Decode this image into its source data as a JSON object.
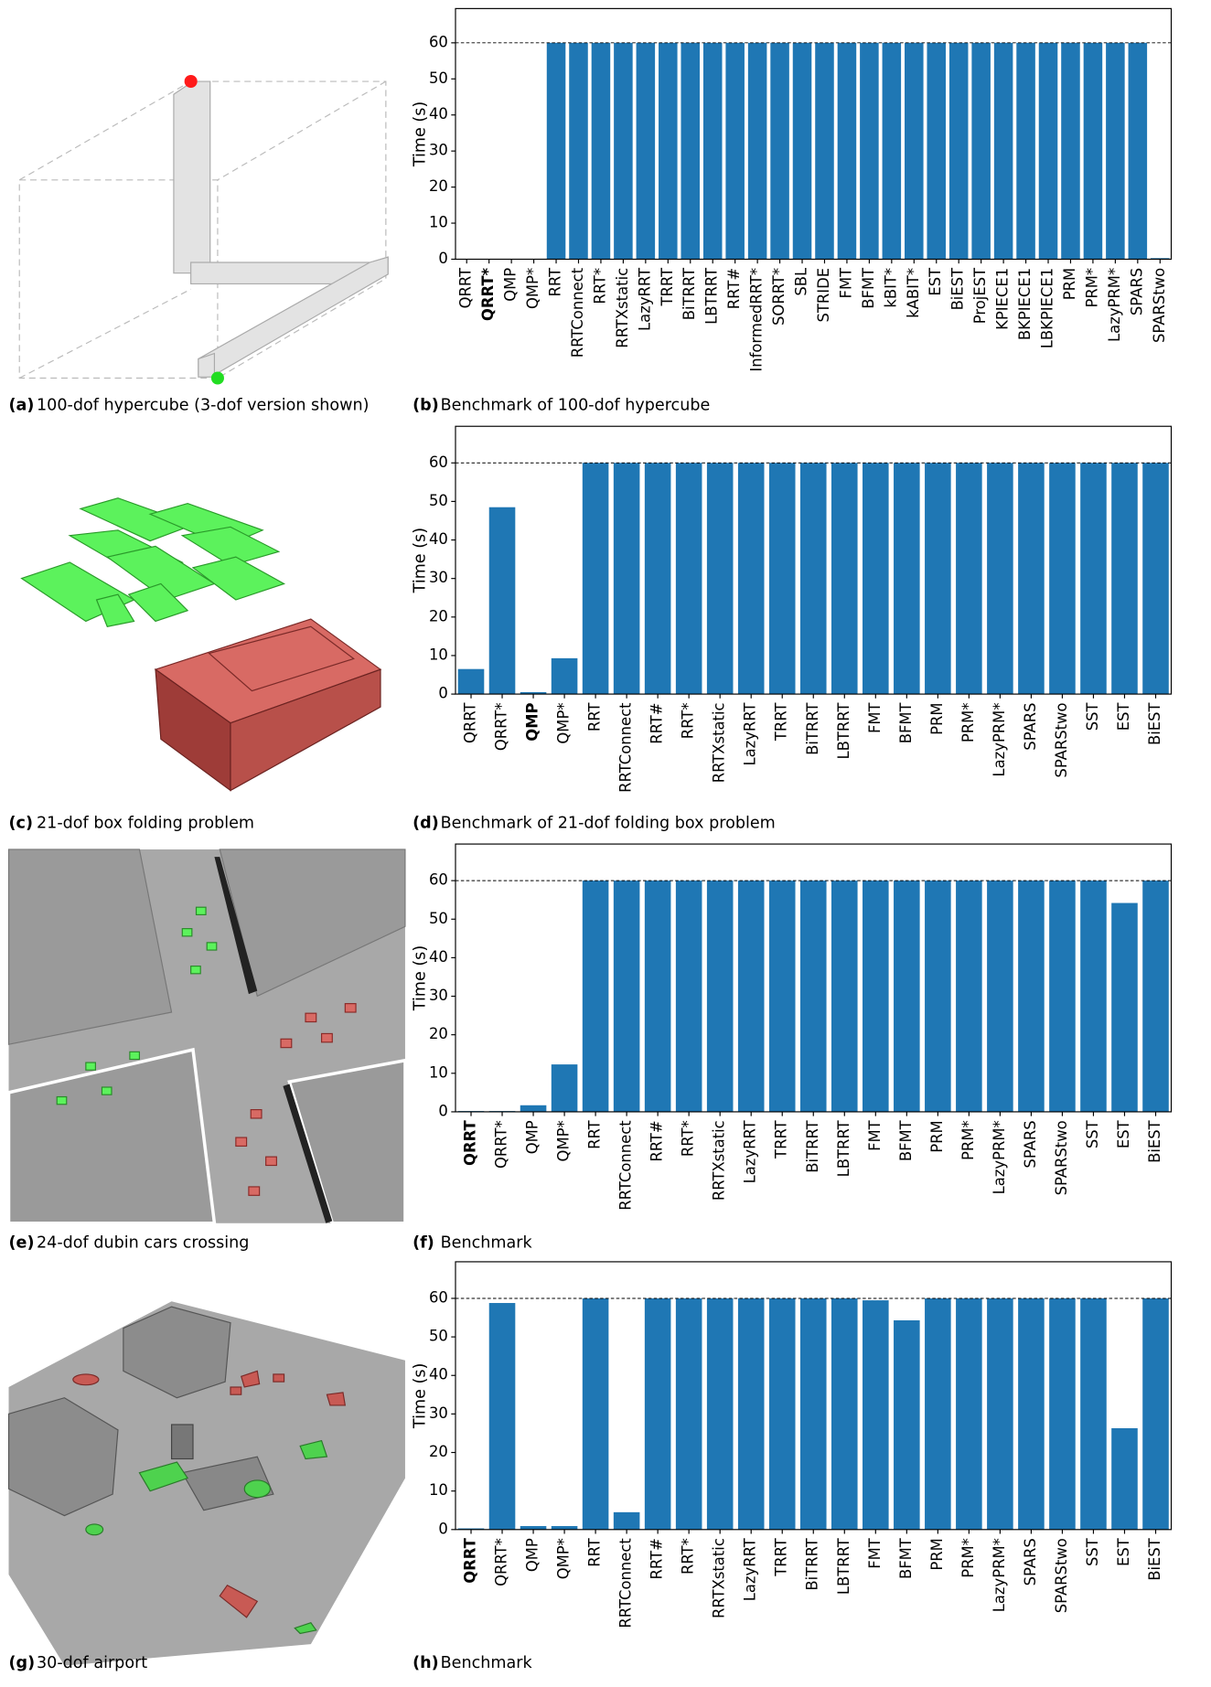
{
  "image_captions": [
    {
      "label": "(a)",
      "text": "100-dof hypercube (3-dof version shown)"
    },
    {
      "label": "(c)",
      "text": "21-dof box folding problem"
    },
    {
      "label": "(e)",
      "text": "24-dof dubin cars crossing"
    },
    {
      "label": "(g)",
      "text": "30-dof airport"
    }
  ],
  "chart_data": [
    {
      "type": "bar",
      "caption_label": "(b)",
      "caption": "Benchmark of 100-dof hypercube",
      "ylabel": "Time (s)",
      "color": "#1f77b4",
      "bold_index": 1,
      "hline": 60,
      "categories": [
        "QRRT",
        "QRRT*",
        "QMP",
        "QMP*",
        "RRT",
        "RRTConnect",
        "RRT*",
        "RRTXstatic",
        "LazyRRT",
        "TRRT",
        "BiTRRT",
        "LBTRRT",
        "RRT#",
        "InformedRRT*",
        "SORRT*",
        "SBL",
        "STRIDE",
        "FMT",
        "BFMT",
        "kBIT*",
        "kABIT*",
        "EST",
        "BiEST",
        "ProjEST",
        "KPIECE1",
        "BKPIECE1",
        "LBKPIECE1",
        "PRM",
        "PRM*",
        "LazyPRM*",
        "SPARS",
        "SPARStwo"
      ],
      "values": [
        0,
        0,
        0,
        0,
        60,
        60,
        60,
        60,
        60,
        60,
        60,
        60,
        60,
        60,
        60,
        60,
        60,
        60,
        60,
        60,
        60,
        60,
        60,
        60,
        60,
        60,
        60,
        60,
        60,
        60,
        60,
        0.3
      ],
      "ylim": [
        0,
        69.5
      ],
      "yticks": [
        0,
        10,
        20,
        30,
        40,
        50,
        60
      ]
    },
    {
      "type": "bar",
      "caption_label": "(d)",
      "caption": "Benchmark of 21-dof folding box problem",
      "ylabel": "Time (s)",
      "color": "#1f77b4",
      "bold_index": 2,
      "hline": 60,
      "categories": [
        "QRRT",
        "QRRT*",
        "QMP",
        "QMP*",
        "RRT",
        "RRTConnect",
        "RRT#",
        "RRT*",
        "RRTXstatic",
        "LazyRRT",
        "TRRT",
        "BiTRRT",
        "LBTRRT",
        "FMT",
        "BFMT",
        "PRM",
        "PRM*",
        "LazyPRM*",
        "SPARS",
        "SPARStwo",
        "SST",
        "EST",
        "BiEST"
      ],
      "values": [
        6.5,
        48.5,
        0.5,
        9.3,
        60,
        60,
        60,
        60,
        60,
        60,
        60,
        60,
        60,
        60,
        60,
        60,
        60,
        60,
        60,
        60,
        60,
        60,
        60
      ],
      "ylim": [
        0,
        69.5
      ],
      "yticks": [
        0,
        10,
        20,
        30,
        40,
        50,
        60
      ]
    },
    {
      "type": "bar",
      "caption_label": "(f)",
      "caption": "Benchmark",
      "ylabel": "Time (s)",
      "color": "#1f77b4",
      "bold_index": 0,
      "hline": 60,
      "categories": [
        "QRRT",
        "QRRT*",
        "QMP",
        "QMP*",
        "RRT",
        "RRTConnect",
        "RRT#",
        "RRT*",
        "RRTXstatic",
        "LazyRRT",
        "TRRT",
        "BiTRRT",
        "LBTRRT",
        "FMT",
        "BFMT",
        "PRM",
        "PRM*",
        "LazyPRM*",
        "SPARS",
        "SPARStwo",
        "SST",
        "EST",
        "BiEST"
      ],
      "values": [
        0.2,
        0.2,
        1.7,
        12.3,
        60,
        60,
        60,
        60,
        60,
        60,
        60,
        60,
        60,
        60,
        60,
        60,
        60,
        60,
        60,
        60,
        60,
        54.2,
        60
      ],
      "ylim": [
        0,
        69.5
      ],
      "yticks": [
        0,
        10,
        20,
        30,
        40,
        50,
        60
      ]
    },
    {
      "type": "bar",
      "caption_label": "(h)",
      "caption": "Benchmark",
      "ylabel": "Time (s)",
      "color": "#1f77b4",
      "bold_index": 0,
      "hline": 60,
      "categories": [
        "QRRT",
        "QRRT*",
        "QMP",
        "QMP*",
        "RRT",
        "RRTConnect",
        "RRT#",
        "RRT*",
        "RRTXstatic",
        "LazyRRT",
        "TRRT",
        "BiTRRT",
        "LBTRRT",
        "FMT",
        "BFMT",
        "PRM",
        "PRM*",
        "LazyPRM*",
        "SPARS",
        "SPARStwo",
        "SST",
        "EST",
        "BiEST"
      ],
      "values": [
        0.3,
        58.8,
        0.9,
        0.9,
        60,
        4.5,
        60,
        60,
        60,
        60,
        60,
        60,
        60,
        59.5,
        54.3,
        60,
        60,
        60,
        60,
        60,
        60,
        26.3,
        60
      ],
      "ylim": [
        0,
        69.5
      ],
      "yticks": [
        0,
        10,
        20,
        30,
        40,
        50,
        60
      ]
    }
  ]
}
